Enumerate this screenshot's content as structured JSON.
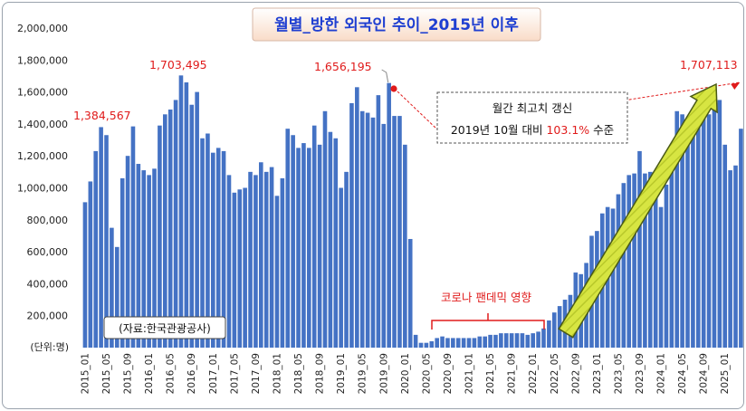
{
  "chart_data": {
    "type": "bar",
    "title": "월별_방한 외국인 추이_2015년 이후",
    "source_note": "(자료:한국관광공사)",
    "unit_label": "(단위:명)",
    "ylim": [
      0,
      2000000
    ],
    "y_ticks": [
      "200,000",
      "400,000",
      "600,000",
      "800,000",
      "1,000,000",
      "1,200,000",
      "1,400,000",
      "1,600,000",
      "1,800,000",
      "2,000,000"
    ],
    "y_tick_values": [
      200000,
      400000,
      600000,
      800000,
      1000000,
      1200000,
      1400000,
      1600000,
      1800000,
      2000000
    ],
    "x_tick_labels": [
      "2015_01",
      "2015_05",
      "2015_09",
      "2016_01",
      "2016_05",
      "2016_09",
      "2017_01",
      "2017_05",
      "2017_09",
      "2018_01",
      "2018_05",
      "2018_09",
      "2019_01",
      "2019_05",
      "2019_09",
      "2020_01",
      "2020_05",
      "2020_09",
      "2021_01",
      "2021_05",
      "2021_09",
      "2022_01",
      "2022_05",
      "2022_09",
      "2023_01",
      "2023_05",
      "2023_09",
      "2024_01",
      "2024_05",
      "2024_09",
      "2025_01"
    ],
    "first_month": "2015_01",
    "bar_color": "#4472c4",
    "grid": false,
    "values": [
      910000,
      1040000,
      1230000,
      1380000,
      1330000,
      750000,
      630000,
      1060000,
      1200000,
      1384567,
      1150000,
      1110000,
      1080000,
      1120000,
      1390000,
      1460000,
      1490000,
      1550000,
      1703495,
      1660000,
      1520000,
      1600000,
      1310000,
      1340000,
      1220000,
      1250000,
      1230000,
      1080000,
      970000,
      990000,
      1000000,
      1100000,
      1080000,
      1160000,
      1100000,
      1130000,
      950000,
      1060000,
      1370000,
      1330000,
      1250000,
      1280000,
      1250000,
      1390000,
      1270000,
      1480000,
      1350000,
      1310000,
      1000000,
      1100000,
      1530000,
      1630000,
      1480000,
      1470000,
      1440000,
      1580000,
      1400000,
      1656195,
      1450000,
      1450000,
      1270000,
      680000,
      80000,
      30000,
      30000,
      40000,
      60000,
      70000,
      60000,
      60000,
      60000,
      60000,
      60000,
      60000,
      70000,
      70000,
      80000,
      80000,
      90000,
      90000,
      90000,
      90000,
      90000,
      80000,
      90000,
      100000,
      120000,
      170000,
      220000,
      260000,
      300000,
      330000,
      470000,
      460000,
      530000,
      700000,
      730000,
      840000,
      880000,
      870000,
      960000,
      1030000,
      1080000,
      1090000,
      1230000,
      1090000,
      1100000,
      1000000,
      880000,
      1020000,
      1220000,
      1480000,
      1460000,
      1420000,
      1420000,
      1420000,
      1560000,
      1460000,
      1600000,
      1550000,
      1270000,
      1110000,
      1140000,
      1370000,
      1707113
    ],
    "annotations": [
      {
        "label": "1,384,567",
        "month_index": 9
      },
      {
        "label": "1,703,495",
        "month_index": 18
      },
      {
        "label": "1,656,195",
        "month_index": 57
      },
      {
        "label": "1,707,113",
        "month_index": 124
      }
    ],
    "callout": {
      "line1": "월간 최고치 갱신",
      "line2_prefix": "2019년 10월 대비 ",
      "line2_highlight": "103.1%",
      "line2_suffix": " 수준"
    },
    "covid_label": "코로나 팬데믹 영향",
    "colors": {
      "title": "#1f3fd1",
      "red": "#e01b1b",
      "arrow_fill": "#ccdd33",
      "arrow_stroke": "#4a5a16"
    }
  }
}
